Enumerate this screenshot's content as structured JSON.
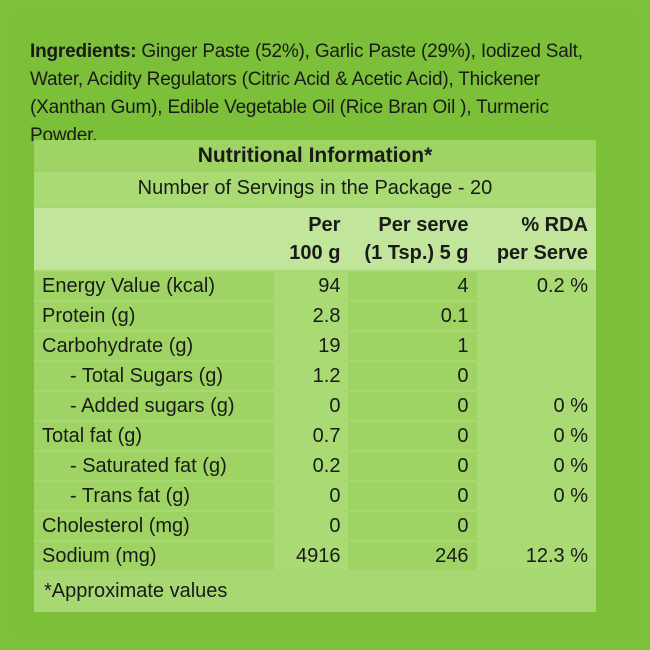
{
  "ingredients": {
    "label": "Ingredients:",
    "text": " Ginger Paste (52%), Garlic Paste (29%), Iodized Salt, Water, Acidity Regulators (Citric Acid & Acetic Acid), Thickener (Xanthan Gum), Edible Vegetable Oil (Rice Bran Oil ), Turmeric Powder."
  },
  "nutrition": {
    "title": "Nutritional Information*",
    "servings": "Number of Servings in the Package - 20",
    "columns": {
      "per100_l1": "Per",
      "per100_l2": "100 g",
      "perserve_l1": "Per serve",
      "perserve_l2": "(1 Tsp.) 5 g",
      "rda_l1": "% RDA",
      "rda_l2": "per Serve"
    },
    "rows": [
      {
        "name": "Energy Value (kcal)",
        "per100": "94",
        "serve": "4",
        "rda": "0.2 %"
      },
      {
        "name": "Protein (g)",
        "per100": "2.8",
        "serve": "0.1",
        "rda": ""
      },
      {
        "name": "Carbohydrate (g)",
        "per100": "19",
        "serve": "1",
        "rda": ""
      },
      {
        "name": "- Total Sugars (g)",
        "per100": "1.2",
        "serve": "0",
        "rda": ""
      },
      {
        "name": "- Added sugars (g)",
        "per100": "0",
        "serve": "0",
        "rda": "0 %"
      },
      {
        "name": "Total fat (g)",
        "per100": "0.7",
        "serve": "0",
        "rda": "0 %"
      },
      {
        "name": "- Saturated fat (g)",
        "per100": "0.2",
        "serve": "0",
        "rda": "0 %"
      },
      {
        "name": "- Trans fat (g)",
        "per100": "0",
        "serve": "0",
        "rda": "0 %"
      },
      {
        "name": "Cholesterol (mg)",
        "per100": "0",
        "serve": "0",
        "rda": ""
      },
      {
        "name": "Sodium (mg)",
        "per100": "4916",
        "serve": "246",
        "rda": "12.3 %"
      }
    ],
    "footnote": "*Approximate values"
  }
}
